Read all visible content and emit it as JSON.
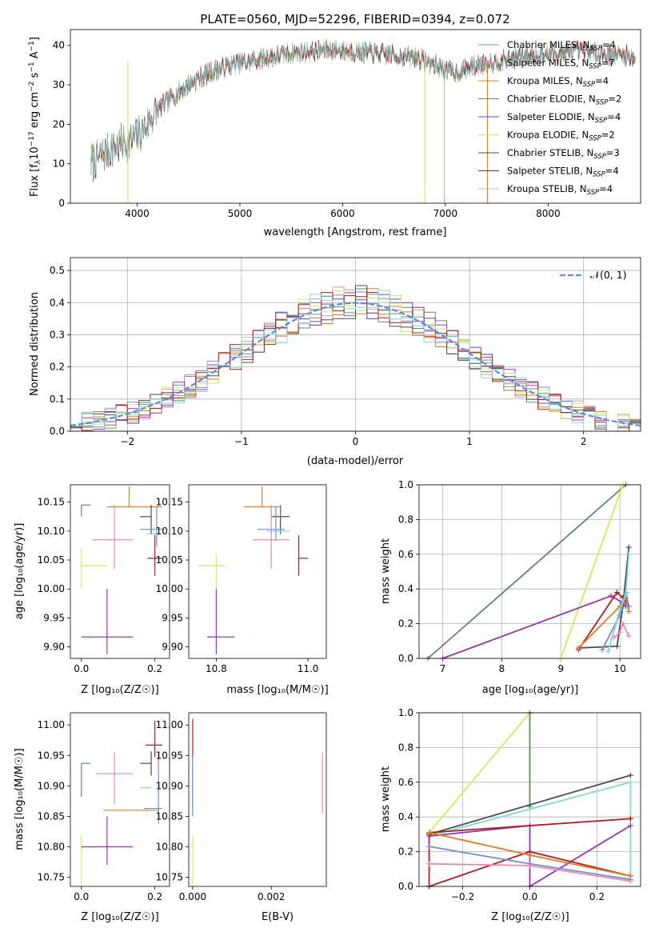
{
  "chart_data": [
    {
      "id": "spectrum",
      "type": "line",
      "title": "PLATE=0560, MJD=52296, FIBERID=0394, z=0.072",
      "xlabel": "wavelength [Angstrom, rest frame]",
      "ylabel_parts": [
        "Flux [f",
        "λ",
        "10",
        "−17",
        " erg cm",
        "−2",
        " s",
        "−1",
        " A",
        "−1",
        "]"
      ],
      "xlim": [
        3350,
        8900
      ],
      "ylim": [
        0,
        44
      ],
      "xticks": [
        4000,
        5000,
        6000,
        7000,
        8000
      ],
      "yticks": [
        0,
        10,
        20,
        30,
        40
      ],
      "legend_position": "top-right",
      "continuum": [
        [
          3550,
          10
        ],
        [
          3650,
          12
        ],
        [
          3750,
          14
        ],
        [
          3850,
          15
        ],
        [
          3950,
          16
        ],
        [
          4050,
          18
        ],
        [
          4150,
          22
        ],
        [
          4250,
          25
        ],
        [
          4350,
          27
        ],
        [
          4450,
          29
        ],
        [
          4550,
          31
        ],
        [
          4700,
          33
        ],
        [
          4900,
          35
        ],
        [
          5100,
          36
        ],
        [
          5300,
          37
        ],
        [
          5500,
          38
        ],
        [
          5700,
          38.5
        ],
        [
          5900,
          39
        ],
        [
          6100,
          38.5
        ],
        [
          6300,
          38
        ],
        [
          6500,
          37.5
        ],
        [
          6700,
          37
        ],
        [
          6900,
          35
        ],
        [
          7100,
          33
        ],
        [
          7300,
          35
        ],
        [
          7500,
          36
        ],
        [
          7700,
          37
        ],
        [
          7900,
          37.5
        ],
        [
          8100,
          38
        ],
        [
          8300,
          38.5
        ],
        [
          8500,
          38
        ],
        [
          8700,
          37.5
        ],
        [
          8850,
          37
        ]
      ],
      "series": [
        {
          "name": "Chabrier MILES, N",
          "sub": "SSP",
          "suffix": "=4",
          "color": "#6a8fd8"
        },
        {
          "name": "Salpeter MILES, N",
          "sub": "SSP",
          "suffix": "=7",
          "color": "#ee88aa"
        },
        {
          "name": "Kroupa MILES, N",
          "sub": "SSP",
          "suffix": "=4",
          "color": "#e07b1f"
        },
        {
          "name": "Chabrier ELODIE, N",
          "sub": "SSP",
          "suffix": "=2",
          "color": "#5e8d60"
        },
        {
          "name": "Salpeter ELODIE, N",
          "sub": "SSP",
          "suffix": "=4",
          "color": "#9b30b8"
        },
        {
          "name": "Kroupa ELODIE, N",
          "sub": "SSP",
          "suffix": "=2",
          "color": "#d4e85a"
        },
        {
          "name": "Chabrier STELIB, N",
          "sub": "SSP",
          "suffix": "=3",
          "color": "#4d4d4d"
        },
        {
          "name": "Salpeter STELIB, N",
          "sub": "SSP",
          "suffix": "=4",
          "color": "#b01c1c"
        },
        {
          "name": "Kroupa STELIB, N",
          "sub": "SSP",
          "suffix": "=4",
          "color": "#7fd8d8"
        }
      ],
      "drop_lines": [
        {
          "x": 3910,
          "color": "#d4e85a"
        },
        {
          "x": 6800,
          "color": "#d4e85a"
        },
        {
          "x": 6990,
          "color": "#bbbbbb"
        },
        {
          "x": 7410,
          "color": "#e07b1f"
        }
      ]
    },
    {
      "id": "residuals",
      "type": "step",
      "xlabel": "(data-model)/error",
      "ylabel": "Normed distribution",
      "xlim": [
        -2.5,
        2.5
      ],
      "ylim": [
        0,
        0.54
      ],
      "xticks": [
        -2,
        -1,
        0,
        1,
        2
      ],
      "yticks": [
        0.0,
        0.1,
        0.2,
        0.3,
        0.4,
        0.5
      ],
      "grid": true,
      "legend_label": "𝒩(0, 1)",
      "legend_position": "top-right",
      "gaussian_color": "#5b8bd4"
    },
    {
      "id": "age-vs-Z",
      "type": "scatter-errorbar",
      "xlabel": "Z [log₁₀(Z/Z☉)]",
      "ylabel": "age  [log₁₀(age/yr)]",
      "xlim": [
        -0.03,
        0.24
      ],
      "ylim": [
        9.88,
        10.18
      ],
      "xticks": [
        0.0,
        0.2
      ],
      "yticks": [
        9.9,
        9.95,
        10.0,
        10.05,
        10.1,
        10.15
      ],
      "points": [
        {
          "x": 0.0,
          "y": 10.145,
          "xerr": [
            0.0,
            0.025
          ],
          "yerr": [
            0.02,
            0.0
          ],
          "color": "#5e8d60"
        },
        {
          "x": 0.13,
          "y": 10.142,
          "xerr": [
            0.06,
            0.09
          ],
          "yerr": [
            0.0,
            0.035
          ],
          "color": "#e07b1f"
        },
        {
          "x": 0.19,
          "y": 10.125,
          "xerr": [
            0.03,
            0.0
          ],
          "yerr": [
            0.03,
            0.02
          ],
          "color": "#4d4d4d"
        },
        {
          "x": 0.205,
          "y": 10.103,
          "xerr": [
            0.045,
            0.015
          ],
          "yerr": [
            0.03,
            0.04
          ],
          "color": "#6a8fd8"
        },
        {
          "x": 0.2,
          "y": 10.095,
          "xerr": [
            0.02,
            0.01
          ],
          "yerr": [
            0.0,
            0.0
          ],
          "color": "#7fd8d8"
        },
        {
          "x": 0.09,
          "y": 10.085,
          "xerr": [
            0.06,
            0.05
          ],
          "yerr": [
            0.05,
            0.06
          ],
          "color": "#ee88aa"
        },
        {
          "x": 0.2,
          "y": 10.053,
          "xerr": [
            0.02,
            0.02
          ],
          "yerr": [
            0.03,
            0.04
          ],
          "color": "#b01c1c"
        },
        {
          "x": 0.0,
          "y": 10.04,
          "xerr": [
            0.0,
            0.07
          ],
          "yerr": [
            0.04,
            0.03
          ],
          "color": "#d4e85a"
        },
        {
          "x": 0.07,
          "y": 9.917,
          "xerr": [
            0.07,
            0.07
          ],
          "yerr": [
            0.03,
            0.083
          ],
          "color": "#9b30b8"
        }
      ]
    },
    {
      "id": "age-vs-mass",
      "type": "scatter-errorbar",
      "xlabel": "mass [log₁₀(M/M☉)]",
      "ylabel": "",
      "xlim": [
        10.74,
        11.04
      ],
      "ylim": [
        9.88,
        10.18
      ],
      "xticks": [
        10.8,
        11.0
      ],
      "yticks": [
        9.9,
        9.95,
        10.0,
        10.05,
        10.1,
        10.15
      ],
      "points": [
        {
          "x": 10.9,
          "y": 10.142,
          "xerr": [
            0.04,
            0.04
          ],
          "yerr": [
            0.0,
            0.035
          ],
          "color": "#e07b1f"
        },
        {
          "x": 10.94,
          "y": 10.125,
          "xerr": [
            0.02,
            0.02
          ],
          "yerr": [
            0.03,
            0.02
          ],
          "color": "#4d4d4d"
        },
        {
          "x": 10.93,
          "y": 10.103,
          "xerr": [
            0.04,
            0.02
          ],
          "yerr": [
            0.02,
            0.04
          ],
          "color": "#6a8fd8"
        },
        {
          "x": 10.93,
          "y": 10.1,
          "xerr": [
            0.02,
            0.03
          ],
          "yerr": [
            0.0,
            0.0
          ],
          "color": "#7fd8d8"
        },
        {
          "x": 10.92,
          "y": 10.085,
          "xerr": [
            0.04,
            0.04
          ],
          "yerr": [
            0.05,
            0.06
          ],
          "color": "#ee88aa"
        },
        {
          "x": 10.98,
          "y": 10.053,
          "xerr": [
            0.0,
            0.02
          ],
          "yerr": [
            0.03,
            0.04
          ],
          "color": "#b01c1c"
        },
        {
          "x": 10.8,
          "y": 10.04,
          "xerr": [
            0.04,
            0.02
          ],
          "yerr": [
            0.04,
            0.02
          ],
          "color": "#d4e85a"
        },
        {
          "x": 10.8,
          "y": 9.917,
          "xerr": [
            0.02,
            0.04
          ],
          "yerr": [
            0.03,
            0.083
          ],
          "color": "#9b30b8"
        },
        {
          "x": 10.94,
          "y": 10.145,
          "xerr": [
            0.0,
            0.0
          ],
          "yerr": [
            0.02,
            0.0
          ],
          "color": "#5e8d60"
        }
      ]
    },
    {
      "id": "mass-weight-vs-age",
      "type": "line",
      "xlabel": "age  [log₁₀(age/yr)]",
      "ylabel": "mass weight",
      "xlim": [
        6.6,
        10.35
      ],
      "ylim": [
        0,
        1.0
      ],
      "xticks": [
        7,
        8,
        9,
        10
      ],
      "yticks": [
        0.0,
        0.2,
        0.4,
        0.6,
        0.8,
        1.0
      ],
      "grid": true,
      "series": [
        {
          "color": "#5e8d60",
          "points": [
            [
              6.75,
              0
            ],
            [
              10.1,
              1.0
            ]
          ]
        },
        {
          "color": "#d4e85a",
          "points": [
            [
              9.0,
              0
            ],
            [
              10.05,
              1.0
            ]
          ]
        },
        {
          "color": "#9b30b8",
          "points": [
            [
              7.0,
              0
            ],
            [
              9.85,
              0.36
            ],
            [
              10.05,
              0.32
            ],
            [
              10.1,
              0.3
            ]
          ]
        },
        {
          "color": "#b01c1c",
          "points": [
            [
              9.3,
              0.05
            ],
            [
              9.95,
              0.38
            ],
            [
              10.05,
              0.35
            ],
            [
              10.15,
              0.3
            ]
          ]
        },
        {
          "color": "#4d4d4d",
          "points": [
            [
              9.3,
              0.06
            ],
            [
              9.95,
              0.07
            ],
            [
              10.05,
              0.3
            ],
            [
              10.15,
              0.64
            ]
          ]
        },
        {
          "color": "#e07b1f",
          "points": [
            [
              9.3,
              0.06
            ],
            [
              10.0,
              0.3
            ],
            [
              10.1,
              0.35
            ],
            [
              10.15,
              0.27
            ]
          ]
        },
        {
          "color": "#6a8fd8",
          "points": [
            [
              9.7,
              0.05
            ],
            [
              10.0,
              0.25
            ],
            [
              10.1,
              0.38
            ],
            [
              10.15,
              0.3
            ]
          ]
        },
        {
          "color": "#7fd8d8",
          "points": [
            [
              9.8,
              0.04
            ],
            [
              10.0,
              0.28
            ],
            [
              10.1,
              0.37
            ],
            [
              10.15,
              0.6
            ]
          ]
        },
        {
          "color": "#ee88aa",
          "points": [
            [
              9.9,
              0.12
            ],
            [
              10.0,
              0.15
            ],
            [
              10.05,
              0.2
            ],
            [
              10.15,
              0.13
            ]
          ]
        }
      ]
    },
    {
      "id": "mass-vs-Z",
      "type": "scatter-errorbar",
      "xlabel": "Z [log₁₀(Z/Z☉)]",
      "ylabel": "mass [log₁₀(M/M☉)]",
      "xlim": [
        -0.03,
        0.24
      ],
      "ylim": [
        10.735,
        11.02
      ],
      "xticks": [
        0.0,
        0.2
      ],
      "yticks": [
        10.75,
        10.8,
        10.85,
        10.9,
        10.95,
        11.0
      ],
      "points": [
        {
          "x": 0.0,
          "y": 10.937,
          "xerr": [
            0.0,
            0.025
          ],
          "yerr": [
            0.055,
            0.0
          ],
          "color": "#5e8d60"
        },
        {
          "x": 0.2,
          "y": 10.967,
          "xerr": [
            0.025,
            0.02
          ],
          "yerr": [
            0.02,
            0.04
          ],
          "color": "#b01c1c"
        },
        {
          "x": 0.19,
          "y": 10.937,
          "xerr": [
            0.03,
            0.0
          ],
          "yerr": [
            0.02,
            0.02
          ],
          "color": "#4d4d4d"
        },
        {
          "x": 0.09,
          "y": 10.92,
          "xerr": [
            0.05,
            0.05
          ],
          "yerr": [
            0.05,
            0.035
          ],
          "color": "#ee88aa"
        },
        {
          "x": 0.17,
          "y": 10.897,
          "xerr": [
            0.01,
            0.02
          ],
          "yerr": [
            0.0,
            0.0
          ],
          "color": "#7fd8d8"
        },
        {
          "x": 0.21,
          "y": 10.863,
          "xerr": [
            0.04,
            0.01
          ],
          "yerr": [
            0.025,
            0.09
          ],
          "color": "#6a8fd8"
        },
        {
          "x": 0.13,
          "y": 10.86,
          "xerr": [
            0.07,
            0.08
          ],
          "yerr": [
            0.0,
            0.0
          ],
          "color": "#e07b1f"
        },
        {
          "x": 0.0,
          "y": 10.8,
          "xerr": [
            0.0,
            0.07
          ],
          "yerr": [
            0.06,
            0.02
          ],
          "color": "#d4e85a"
        },
        {
          "x": 0.07,
          "y": 10.8,
          "xerr": [
            0.07,
            0.07
          ],
          "yerr": [
            0.03,
            0.05
          ],
          "color": "#9b30b8"
        }
      ]
    },
    {
      "id": "mass-vs-EBV",
      "type": "scatter-errorbar",
      "xlabel": "E(B-V)",
      "ylabel": "",
      "xlim": [
        -0.0001,
        0.0034
      ],
      "ylim": [
        10.735,
        11.02
      ],
      "xticks": [
        0.0,
        0.002
      ],
      "yticks": [
        10.75,
        10.8,
        10.85,
        10.9,
        10.95,
        11.0
      ],
      "points": [
        {
          "x": 0.0,
          "y": 10.94,
          "xerr": [
            0,
            0
          ],
          "yerr": [
            0.08,
            0.07
          ],
          "color": "#b01c1c"
        },
        {
          "x": 0.0,
          "y": 10.9,
          "xerr": [
            0,
            0
          ],
          "yerr": [
            0.05,
            0.05
          ],
          "color": "#6a8fd8"
        },
        {
          "x": 0.0,
          "y": 10.78,
          "xerr": [
            0,
            0
          ],
          "yerr": [
            0.04,
            0.04
          ],
          "color": "#d4e85a"
        },
        {
          "x": 0.0033,
          "y": 10.905,
          "xerr": [
            0,
            0
          ],
          "yerr": [
            0.05,
            0.05
          ],
          "color": "#ee88aa"
        }
      ]
    },
    {
      "id": "mass-weight-vs-Z",
      "type": "line",
      "xlabel": "Z [log₁₀(Z/Z☉)]",
      "ylabel": "mass weight",
      "xlim": [
        -0.33,
        0.33
      ],
      "ylim": [
        0,
        1.0
      ],
      "xticks": [
        -0.2,
        0.0,
        0.2
      ],
      "yticks": [
        0.0,
        0.2,
        0.4,
        0.6,
        0.8,
        1.0
      ],
      "grid": true,
      "series": [
        {
          "color": "#d4e85a",
          "points": [
            [
              -0.3,
              0.31
            ],
            [
              0.0,
              1.0
            ]
          ]
        },
        {
          "color": "#5e8d60",
          "points": [
            [
              0.0,
              1.0
            ],
            [
              0.0,
              0.46
            ]
          ]
        },
        {
          "color": "#4d4d4d",
          "points": [
            [
              -0.3,
              0.3
            ],
            [
              0.3,
              0.64
            ]
          ]
        },
        {
          "color": "#7fd8d8",
          "points": [
            [
              -0.3,
              0.29
            ],
            [
              0.3,
              0.6
            ],
            [
              0.3,
              0.03
            ]
          ]
        },
        {
          "color": "#9b30b8",
          "points": [
            [
              -0.3,
              0.29
            ],
            [
              0.0,
              0.35
            ],
            [
              0.0,
              0.0
            ],
            [
              0.3,
              0.35
            ]
          ]
        },
        {
          "color": "#b01c1c",
          "points": [
            [
              -0.3,
              0.0
            ],
            [
              -0.3,
              0.31
            ],
            [
              0.3,
              0.39
            ]
          ]
        },
        {
          "color": "#b01c1c",
          "points": [
            [
              -0.3,
              0.0
            ],
            [
              0.0,
              0.2
            ],
            [
              0.3,
              0.06
            ]
          ]
        },
        {
          "color": "#e07b1f",
          "points": [
            [
              -0.3,
              0.31
            ],
            [
              0.0,
              0.18
            ],
            [
              0.3,
              0.06
            ]
          ]
        },
        {
          "color": "#6a8fd8",
          "points": [
            [
              -0.3,
              0.23
            ],
            [
              0.0,
              0.13
            ],
            [
              0.3,
              0.04
            ]
          ]
        },
        {
          "color": "#ee88aa",
          "points": [
            [
              -0.3,
              0.13
            ],
            [
              0.0,
              0.12
            ],
            [
              0.3,
              0.03
            ]
          ]
        }
      ]
    }
  ]
}
